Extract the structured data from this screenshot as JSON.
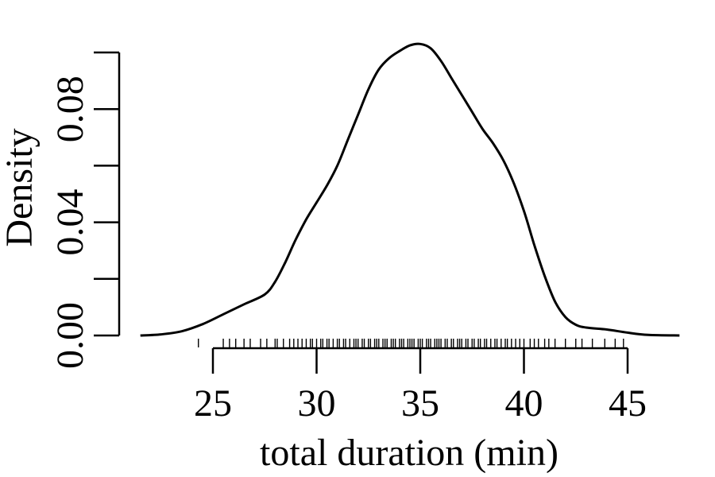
{
  "chart_data": {
    "type": "line",
    "xlabel": "total duration (min)",
    "ylabel": "Density",
    "xlim": [
      25,
      45
    ],
    "ylim": [
      0,
      0.1
    ],
    "x_ticks": [
      25,
      30,
      35,
      40,
      45
    ],
    "x_tick_labels": [
      "25",
      "30",
      "35",
      "40",
      "45"
    ],
    "y_ticks": [
      0,
      0.02,
      0.04,
      0.06,
      0.08,
      0.1
    ],
    "y_tick_labels": [
      "0.00",
      "",
      "0.04",
      "",
      "0.08",
      ""
    ],
    "grid": false,
    "series": [
      {
        "x": [
          21.5,
          22.5,
          23.5,
          24.5,
          25.5,
          26.5,
          27.5,
          28.0,
          28.5,
          29.0,
          29.5,
          30.0,
          30.5,
          31.0,
          31.5,
          32.0,
          32.5,
          33.0,
          33.5,
          34.0,
          34.5,
          35.0,
          35.5,
          36.0,
          36.5,
          37.0,
          37.5,
          38.0,
          38.5,
          39.0,
          39.5,
          40.0,
          40.5,
          41.0,
          41.5,
          42.0,
          42.5,
          43.0,
          44.0,
          45.0,
          46.0,
          47.5
        ],
        "y": [
          0.0,
          0.0004,
          0.0015,
          0.004,
          0.0075,
          0.011,
          0.0145,
          0.019,
          0.026,
          0.034,
          0.041,
          0.047,
          0.053,
          0.06,
          0.069,
          0.078,
          0.087,
          0.094,
          0.098,
          0.1005,
          0.1025,
          0.103,
          0.1015,
          0.097,
          0.091,
          0.085,
          0.079,
          0.073,
          0.068,
          0.062,
          0.054,
          0.044,
          0.032,
          0.021,
          0.012,
          0.0065,
          0.0038,
          0.0028,
          0.0021,
          0.001,
          0.0002,
          0.0
        ]
      }
    ],
    "rug": [
      24.3,
      25.5,
      25.8,
      26.1,
      26.5,
      26.8,
      27.3,
      27.6,
      28.0,
      28.1,
      28.4,
      28.7,
      28.9,
      29.1,
      29.3,
      29.5,
      29.7,
      29.8,
      30.0,
      30.2,
      30.3,
      30.5,
      30.6,
      30.8,
      31.0,
      31.1,
      31.3,
      31.4,
      31.6,
      31.8,
      31.9,
      32.0,
      32.2,
      32.3,
      32.5,
      32.6,
      32.8,
      32.9,
      33.0,
      33.2,
      33.3,
      33.4,
      33.6,
      33.7,
      33.8,
      34.0,
      34.1,
      34.2,
      34.4,
      34.5,
      34.6,
      34.7,
      34.9,
      35.0,
      35.1,
      35.3,
      35.4,
      35.5,
      35.7,
      35.8,
      35.9,
      36.0,
      36.2,
      36.3,
      36.5,
      36.6,
      36.8,
      36.9,
      37.0,
      37.2,
      37.3,
      37.5,
      37.6,
      37.8,
      37.9,
      38.1,
      38.2,
      38.4,
      38.6,
      38.7,
      38.9,
      39.1,
      39.2,
      39.4,
      39.6,
      39.8,
      40.0,
      40.3,
      40.5,
      40.7,
      41.0,
      41.2,
      41.5,
      42.0,
      42.5,
      42.8,
      43.3,
      43.9,
      44.4,
      44.8
    ]
  }
}
